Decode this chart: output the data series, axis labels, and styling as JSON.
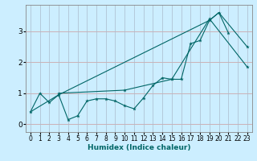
{
  "xlabel": "Humidex (Indice chaleur)",
  "x": [
    0,
    1,
    2,
    3,
    4,
    5,
    6,
    7,
    8,
    9,
    10,
    11,
    12,
    13,
    14,
    15,
    16,
    17,
    18,
    19,
    20,
    21,
    22,
    23
  ],
  "line1_y": [
    0.4,
    1.0,
    0.7,
    0.95,
    0.15,
    0.27,
    0.75,
    0.82,
    0.82,
    0.75,
    0.6,
    0.5,
    0.85,
    1.25,
    1.5,
    1.45,
    1.45,
    2.6,
    2.7,
    3.35,
    3.6,
    2.95,
    null,
    2.5
  ],
  "line2_x": [
    3,
    10,
    15,
    19,
    23
  ],
  "line2_y": [
    1.0,
    1.1,
    1.45,
    3.4,
    1.85
  ],
  "line3_x": [
    0,
    3,
    19,
    20,
    23
  ],
  "line3_y": [
    0.4,
    0.95,
    3.35,
    3.6,
    2.5
  ],
  "bg_color": "#cceeff",
  "grid_major_color": "#aabbcc",
  "grid_minor_color": "#ddbbbb",
  "line_color": "#006666",
  "xlim": [
    -0.5,
    23.5
  ],
  "ylim": [
    -0.25,
    3.85
  ],
  "yticks": [
    0,
    1,
    2,
    3
  ],
  "xticks": [
    0,
    1,
    2,
    3,
    4,
    5,
    6,
    7,
    8,
    9,
    10,
    11,
    12,
    13,
    14,
    15,
    16,
    17,
    18,
    19,
    20,
    21,
    22,
    23
  ],
  "xlabel_fontsize": 6.5,
  "tick_fontsize": 5.5,
  "ytick_fontsize": 6.5
}
